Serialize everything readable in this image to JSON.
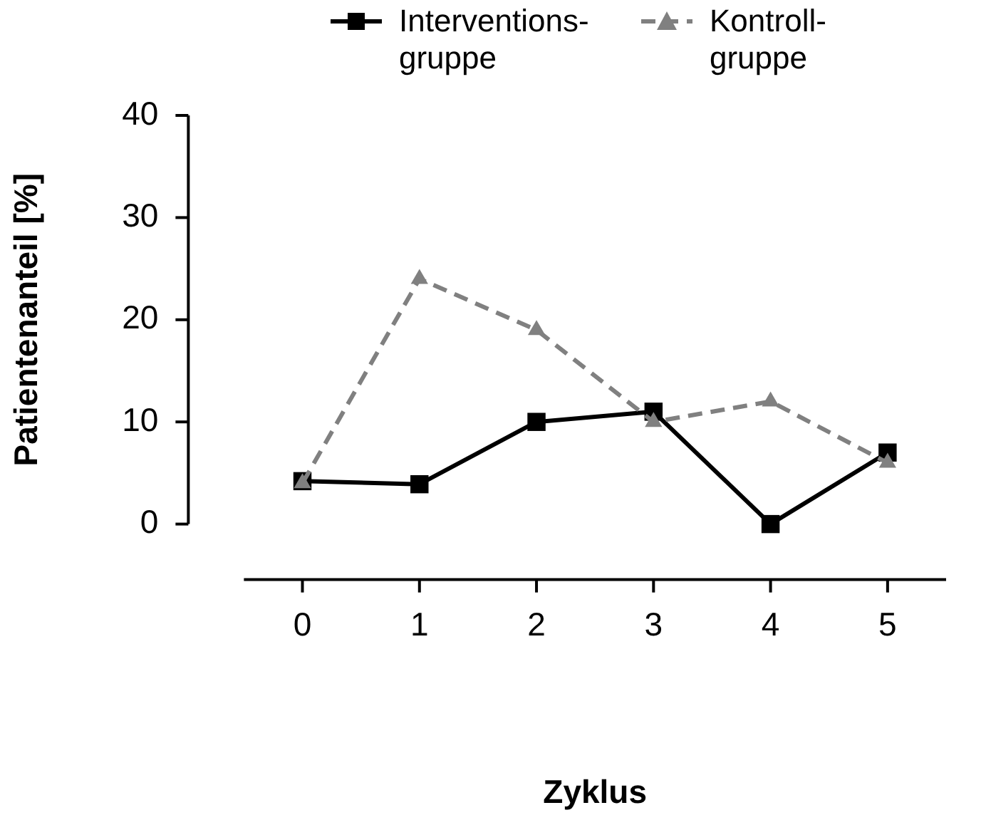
{
  "chart_data": {
    "type": "line",
    "xlabel": "Zyklus",
    "ylabel": "Patientenanteil [%]",
    "x": [
      0,
      1,
      2,
      3,
      4,
      5
    ],
    "xlim": [
      -0.5,
      5.5
    ],
    "xticks": [
      0,
      1,
      2,
      3,
      4,
      5
    ],
    "ylim": [
      0,
      40
    ],
    "yticks": [
      0,
      10,
      20,
      30,
      40
    ],
    "grid": false,
    "legend": "top",
    "series": [
      {
        "name": "Interventions-gruppe",
        "color": "#000000",
        "values": [
          4.2,
          3.9,
          10,
          11,
          0,
          7
        ],
        "marker": "square",
        "line_style": "solid"
      },
      {
        "name": "Kontroll-gruppe",
        "color": "#808080",
        "values": [
          4,
          24,
          19,
          10,
          12,
          6
        ],
        "marker": "triangle",
        "line_style": "dashed"
      }
    ]
  }
}
